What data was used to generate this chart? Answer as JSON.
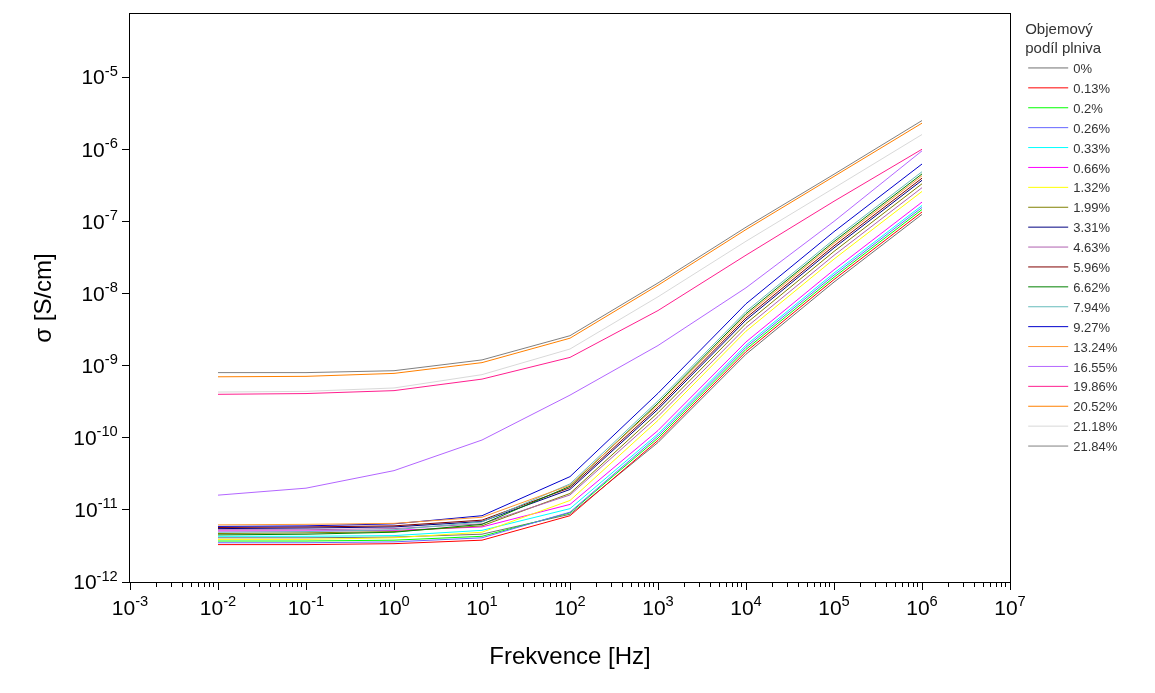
{
  "chart_data": {
    "type": "line",
    "xlabel": "Frekvence [Hz]",
    "ylabel": "σ [S/cm]",
    "legend_title": "Objemový podíl plniva",
    "legend": "right",
    "log": "xy",
    "grid": false,
    "marker": "none",
    "line_style": "solid",
    "xlim": [
      0.001,
      10000000
    ],
    "ylim": [
      1e-12,
      7.5e-05
    ],
    "xticks": [
      {
        "value": 0.001,
        "label": "10$^{-3}$"
      },
      {
        "value": 0.01,
        "label": "10$^{-2}$"
      },
      {
        "value": 0.1,
        "label": "10$^{-1}$"
      },
      {
        "value": 1,
        "label": "10$^{0}$"
      },
      {
        "value": 10,
        "label": "10$^{1}$"
      },
      {
        "value": 100,
        "label": "10$^{2}$"
      },
      {
        "value": 1000,
        "label": "10$^{3}$"
      },
      {
        "value": 10000,
        "label": "10$^{4}$"
      },
      {
        "value": 100000,
        "label": "10$^{5}$"
      },
      {
        "value": 1000000,
        "label": "10$^{6}$"
      },
      {
        "value": 10000000,
        "label": "10$^{7}$"
      }
    ],
    "yticks": [
      {
        "value": 1e-12,
        "label": "10$^{-12}$"
      },
      {
        "value": 1e-11,
        "label": "10$^{-11}$"
      },
      {
        "value": 1e-10,
        "label": "10$^{-10}$"
      },
      {
        "value": 1e-09,
        "label": "10$^{-9}$"
      },
      {
        "value": 1e-08,
        "label": "10$^{-8}$"
      },
      {
        "value": 1e-07,
        "label": "10$^{-7}$"
      },
      {
        "value": 1e-06,
        "label": "10$^{-6}$"
      },
      {
        "value": 1e-05,
        "label": "10$^{-5}$"
      }
    ],
    "x": [
      0.01,
      0.1,
      1,
      10,
      100,
      1000,
      10000,
      100000,
      1000000
    ],
    "series": [
      {
        "name": "0%",
        "color": "#707070",
        "values": [
          4.1e-12,
          4.1e-12,
          4.2e-12,
          4.6e-12,
          8.7e-12,
          8.6e-11,
          1.44e-09,
          1.44e-08,
          1.25e-07
        ]
      },
      {
        "name": "0.13%",
        "color": "#ff0000",
        "values": [
          3.3e-12,
          3.3e-12,
          3.4e-12,
          3.8e-12,
          8.3e-12,
          9.2e-11,
          1.56e-09,
          1.56e-08,
          1.35e-07
        ]
      },
      {
        "name": "0.2%",
        "color": "#00ff00",
        "values": [
          3.7e-12,
          3.7e-12,
          3.8e-12,
          4.3e-12,
          9.1e-12,
          9.9e-11,
          1.68e-09,
          1.68e-08,
          1.46e-07
        ]
      },
      {
        "name": "0.26%",
        "color": "#6666ff",
        "values": [
          3.5e-12,
          3.5e-12,
          3.6e-12,
          4.1e-12,
          9.3e-12,
          1.06e-10,
          1.8e-09,
          1.8e-08,
          1.56e-07
        ]
      },
      {
        "name": "0.33%",
        "color": "#00ffff",
        "values": [
          4.3e-12,
          4.3e-12,
          4.4e-12,
          5.2e-12,
          1.04e-11,
          1.13e-10,
          1.92e-09,
          1.92e-08,
          1.66e-07
        ]
      },
      {
        "name": "0.66%",
        "color": "#ff00ff",
        "values": [
          5.1e-12,
          5.1e-12,
          5.2e-12,
          5.8e-12,
          1.19e-11,
          1.26e-10,
          2.13e-09,
          2.13e-08,
          1.85e-07
        ]
      },
      {
        "name": "1.32%",
        "color": "#ffff00",
        "values": [
          3.9e-12,
          3.9e-12,
          4.1e-12,
          4.9e-12,
          1.35e-11,
          1.74e-10,
          3e-09,
          3e-08,
          2.6e-07
        ]
      },
      {
        "name": "1.99%",
        "color": "#808000",
        "values": [
          4.7e-12,
          4.8e-12,
          5e-12,
          6e-12,
          1.69e-11,
          2.22e-10,
          3.83e-09,
          3.83e-08,
          3.32e-07
        ]
      },
      {
        "name": "3.31%",
        "color": "#000080",
        "values": [
          5.5e-12,
          5.6e-12,
          5.8e-12,
          6.9e-12,
          1.92e-11,
          2.48e-10,
          4.28e-09,
          4.28e-08,
          3.71e-07
        ]
      },
      {
        "name": "4.63%",
        "color": "#b060b0",
        "values": [
          5.3e-12,
          5.3e-12,
          5.5e-12,
          6.4e-12,
          1.61e-11,
          1.97e-10,
          3.38e-09,
          3.38e-08,
          2.93e-07
        ]
      },
      {
        "name": "5.96%",
        "color": "#800000",
        "values": [
          5.7e-12,
          5.8e-12,
          6e-12,
          7.2e-12,
          2.03e-11,
          2.65e-10,
          4.58e-09,
          4.58e-08,
          3.97e-07
        ]
      },
      {
        "name": "6.62%",
        "color": "#008000",
        "values": [
          4.5e-12,
          4.6e-12,
          4.9e-12,
          6.3e-12,
          2.13e-11,
          3.02e-10,
          5.25e-09,
          5.25e-08,
          4.55e-07
        ]
      },
      {
        "name": "7.94%",
        "color": "#66bbbb",
        "values": [
          4.9e-12,
          5e-12,
          5.3e-12,
          6.8e-12,
          2.29e-11,
          3.24e-10,
          5.63e-09,
          5.63e-08,
          4.88e-07
        ]
      },
      {
        "name": "9.27%",
        "color": "#0000cc",
        "values": [
          5.9e-12,
          6e-12,
          6.4e-12,
          8.3e-12,
          2.89e-11,
          4.14e-10,
          7.2e-09,
          7.2e-08,
          6.24e-07
        ]
      },
      {
        "name": "13.24%",
        "color": "#ff9933",
        "values": [
          6.2e-12,
          6.3e-12,
          6.5e-12,
          7.9e-12,
          2.2e-11,
          2.87e-10,
          4.95e-09,
          4.95e-08,
          4.29e-07
        ]
      },
      {
        "name": "16.55%",
        "color": "#b366ff",
        "values": [
          1.6e-11,
          2e-11,
          3.5e-11,
          9.3e-11,
          3.9e-10,
          1.9e-09,
          1.2e-08,
          1e-07,
          9.5e-07
        ]
      },
      {
        "name": "19.86%",
        "color": "#ff1f8f",
        "values": [
          4e-10,
          4.1e-10,
          4.5e-10,
          6.5e-10,
          1.3e-09,
          5.8e-09,
          3.4e-08,
          1.9e-07,
          1e-06
        ]
      },
      {
        "name": "20.52%",
        "color": "#ff8000",
        "values": [
          7e-10,
          7.1e-10,
          7.8e-10,
          1.1e-09,
          2.4e-09,
          1.3e-08,
          7.7e-08,
          4.2e-07,
          2.3e-06
        ]
      },
      {
        "name": "21.18%",
        "color": "#d9d9d9",
        "values": [
          4.3e-10,
          4.4e-10,
          4.9e-10,
          7.5e-10,
          1.7e-09,
          9e-09,
          5.3e-08,
          2.9e-07,
          1.6e-06
        ]
      },
      {
        "name": "21.84%",
        "color": "#808080",
        "values": [
          8e-10,
          8e-10,
          8.5e-10,
          1.2e-09,
          2.6e-09,
          1.4e-08,
          8.3e-08,
          4.5e-07,
          2.5e-06
        ]
      }
    ]
  }
}
